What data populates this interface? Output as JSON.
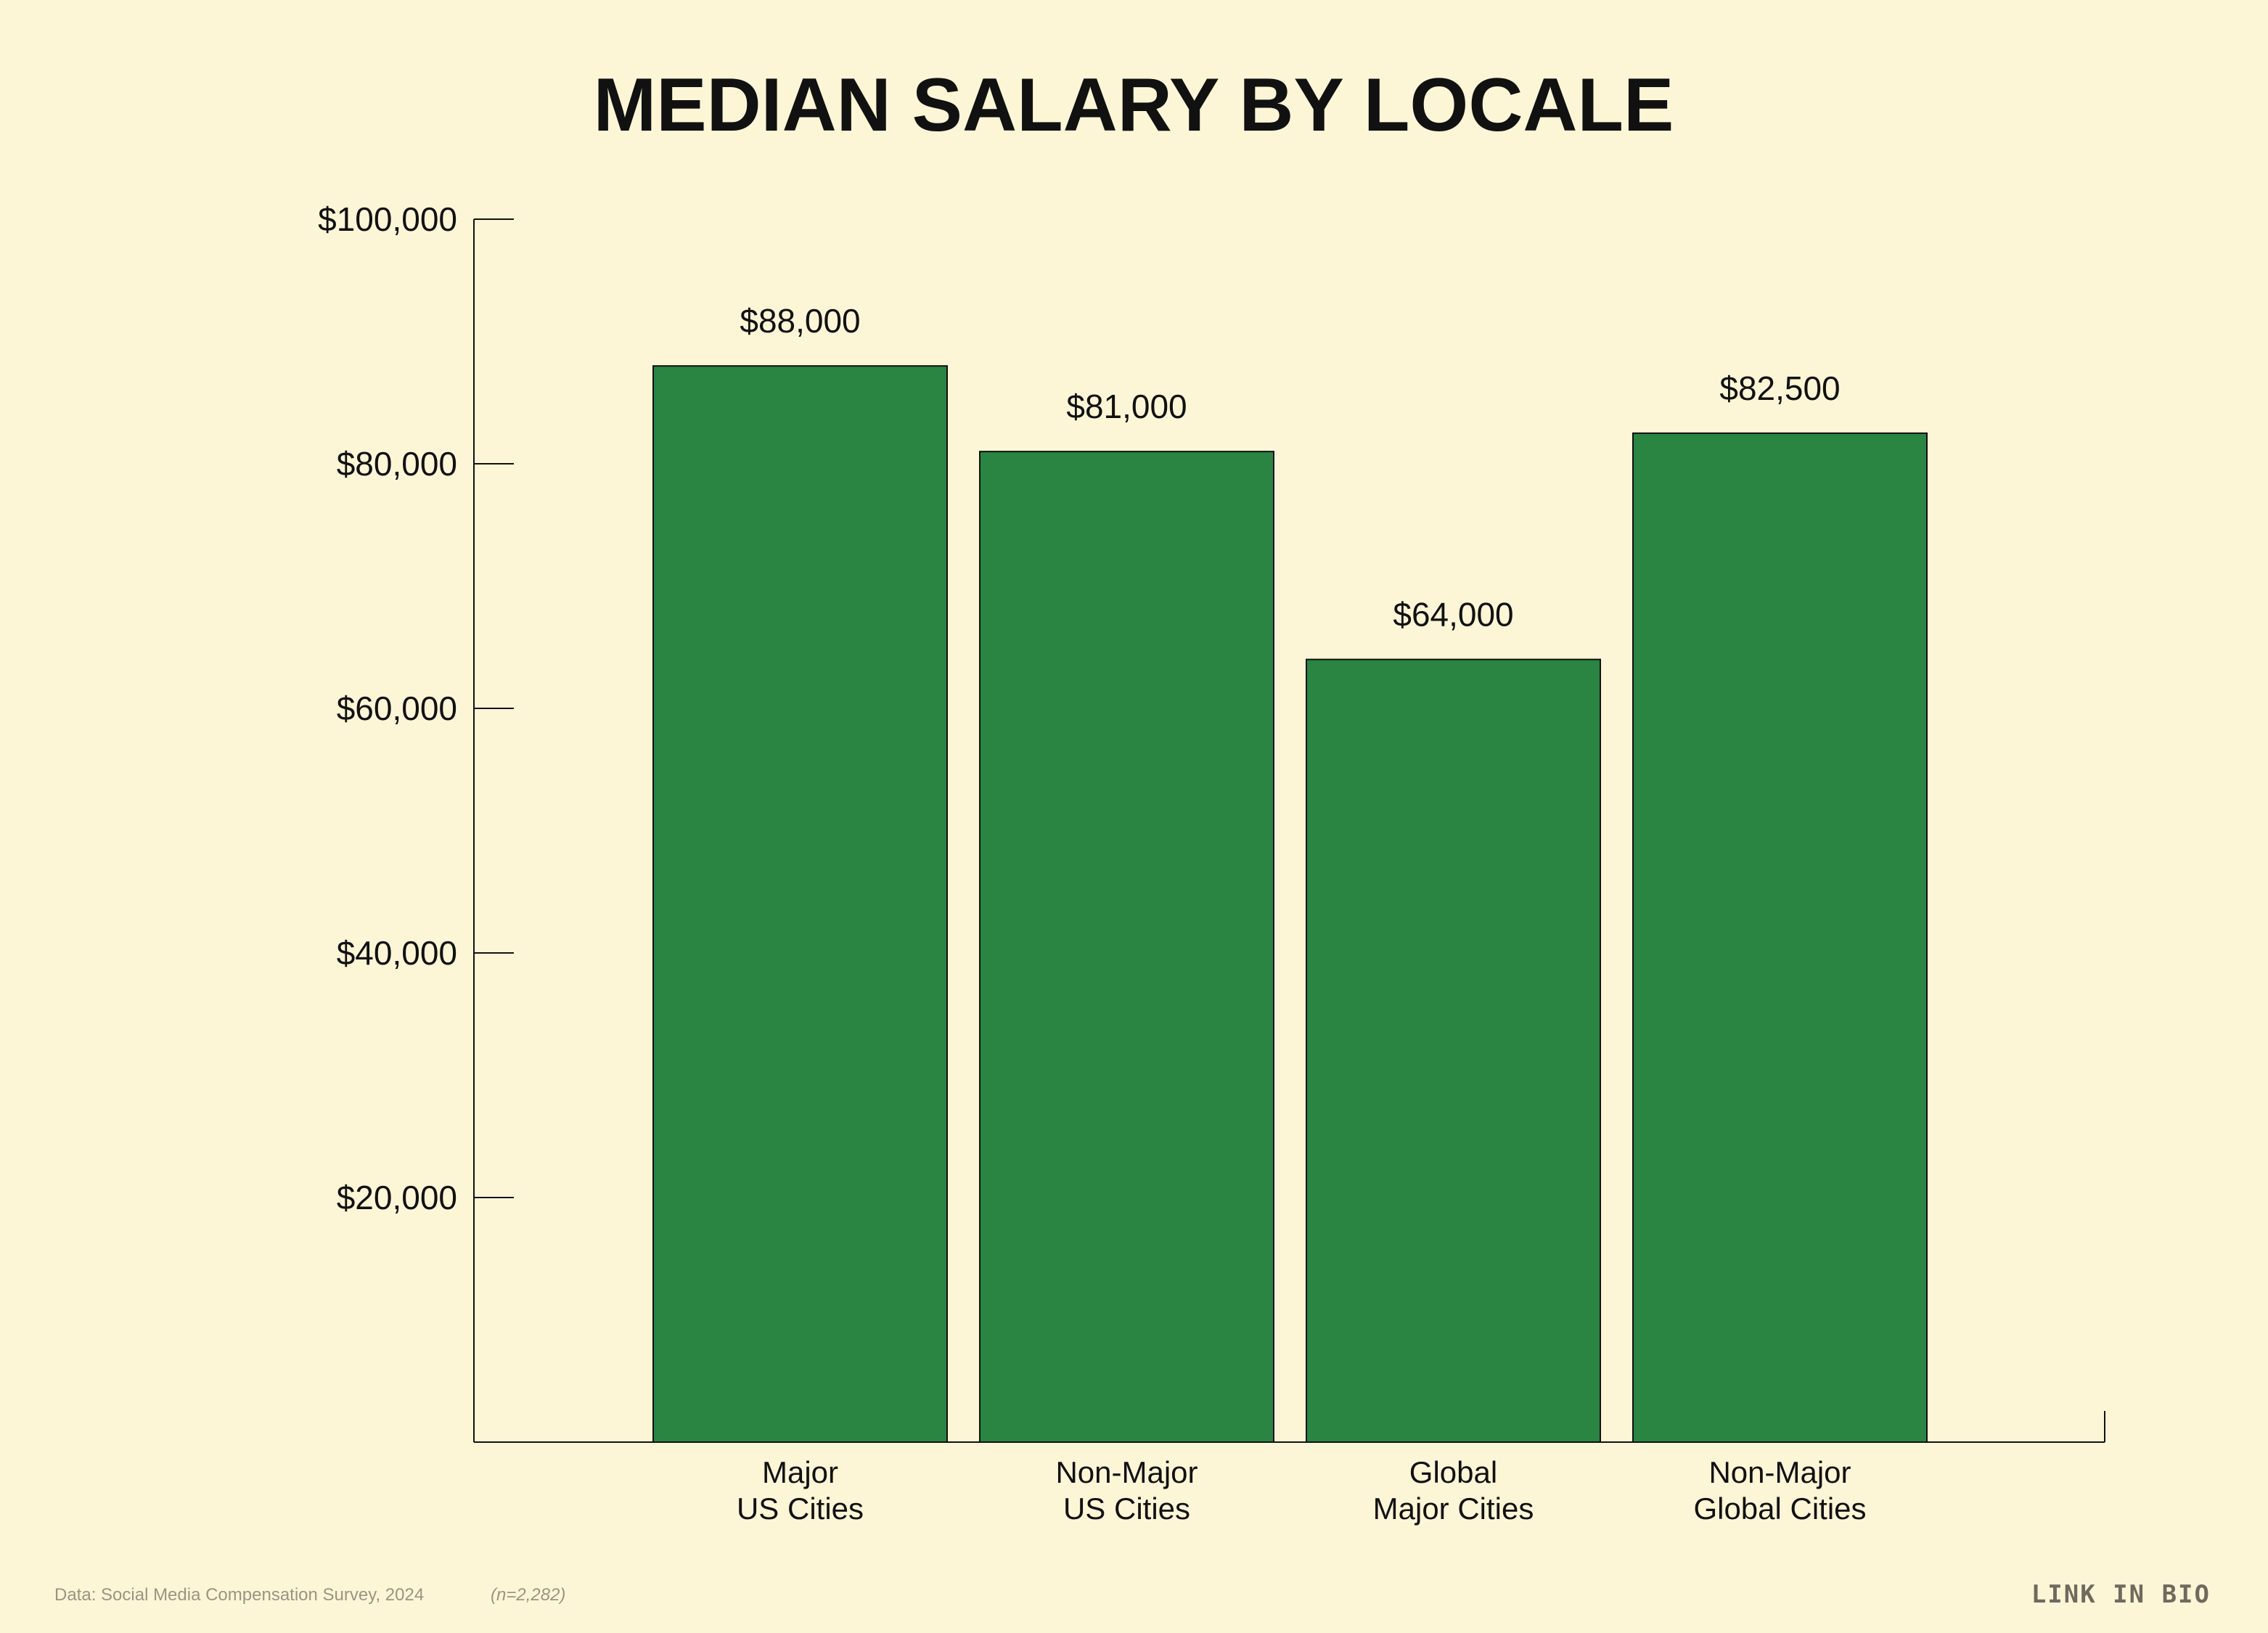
{
  "chart_data": {
    "type": "bar",
    "title": "MEDIAN SALARY BY LOCALE",
    "xlabel": "",
    "ylabel": "",
    "categories": [
      [
        "Major",
        "US Cities"
      ],
      [
        "Non-Major",
        "US Cities"
      ],
      [
        "Global",
        "Major Cities"
      ],
      [
        "Non-Major",
        "Global Cities"
      ]
    ],
    "values": [
      88000,
      81000,
      64000,
      82500
    ],
    "data_labels": [
      "$88,000",
      "$81,000",
      "$64,000",
      "$82,500"
    ],
    "ylim": [
      0,
      100000
    ],
    "yticks": [
      20000,
      40000,
      60000,
      80000,
      100000
    ],
    "ytick_labels": [
      "$20,000",
      "$40,000",
      "$60,000",
      "$80,000",
      "$100,000"
    ],
    "grid": false,
    "legend": "none",
    "colors": {
      "bar": "#2a8442",
      "bar_stroke": "#111111",
      "axis": "#111111",
      "background": "#fdf6d6"
    }
  },
  "footer": {
    "source": "Data: Social Media Compensation Survey, 2024",
    "sample": "(n=2,282)",
    "brand": "LINK IN BIO"
  }
}
